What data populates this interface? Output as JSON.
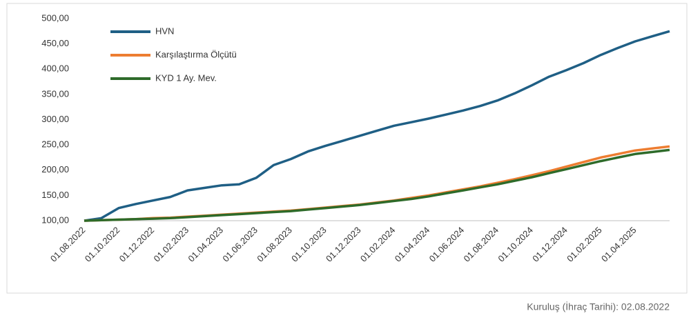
{
  "chart_data": {
    "type": "line",
    "categories": [
      "01.08.2022",
      null,
      "01.10.2022",
      null,
      "01.12.2022",
      null,
      "01.02.2023",
      null,
      "01.04.2023",
      null,
      "01.06.2023",
      null,
      "01.08.2023",
      null,
      "01.10.2023",
      null,
      "01.12.2023",
      null,
      "01.02.2024",
      null,
      "01.04.2024",
      null,
      "01.06.2024",
      null,
      "01.08.2024",
      null,
      "01.10.2024",
      null,
      "01.12.2024",
      null,
      "01.02.2025",
      null,
      "01.04.2025",
      null,
      null
    ],
    "series": [
      {
        "name": "HVN",
        "color": "#1f5f85",
        "values": [
          100,
          105,
          125,
          133,
          140,
          147,
          160,
          165,
          170,
          172,
          185,
          210,
          222,
          237,
          248,
          258,
          268,
          278,
          288,
          295,
          302,
          310,
          318,
          327,
          338,
          352,
          368,
          385,
          398,
          412,
          428,
          442,
          455,
          465,
          475
        ]
      },
      {
        "name": "Karşılaştırma Ölçütü",
        "color": "#ed7d31",
        "values": [
          100,
          101,
          102,
          103,
          105,
          106,
          108,
          110,
          112,
          114,
          116,
          118,
          120,
          123,
          126,
          129,
          132,
          136,
          140,
          145,
          150,
          156,
          162,
          168,
          175,
          182,
          190,
          198,
          207,
          216,
          225,
          232,
          239,
          243,
          247
        ]
      },
      {
        "name": "KYD 1 Ay. Mev.",
        "color": "#2e6b2a",
        "values": [
          100,
          101,
          102,
          103,
          104,
          105,
          107,
          109,
          111,
          113,
          115,
          117,
          119,
          122,
          125,
          128,
          131,
          135,
          139,
          143,
          148,
          154,
          160,
          166,
          172,
          179,
          186,
          194,
          202,
          210,
          218,
          225,
          232,
          236,
          240
        ]
      }
    ],
    "ylim": [
      100,
      500
    ],
    "yticks": [
      {
        "value": 100,
        "label": "100,00"
      },
      {
        "value": 150,
        "label": "150,00"
      },
      {
        "value": 200,
        "label": "200,00"
      },
      {
        "value": 250,
        "label": "250,00"
      },
      {
        "value": 300,
        "label": "300,00"
      },
      {
        "value": 350,
        "label": "350,00"
      },
      {
        "value": 400,
        "label": "400,00"
      },
      {
        "value": 450,
        "label": "450,00"
      },
      {
        "value": 500,
        "label": "500,00"
      }
    ],
    "grid": false,
    "legend": "top-left",
    "footnote": "Kuruluş (İhraç Tarihi): 02.08.2022"
  }
}
